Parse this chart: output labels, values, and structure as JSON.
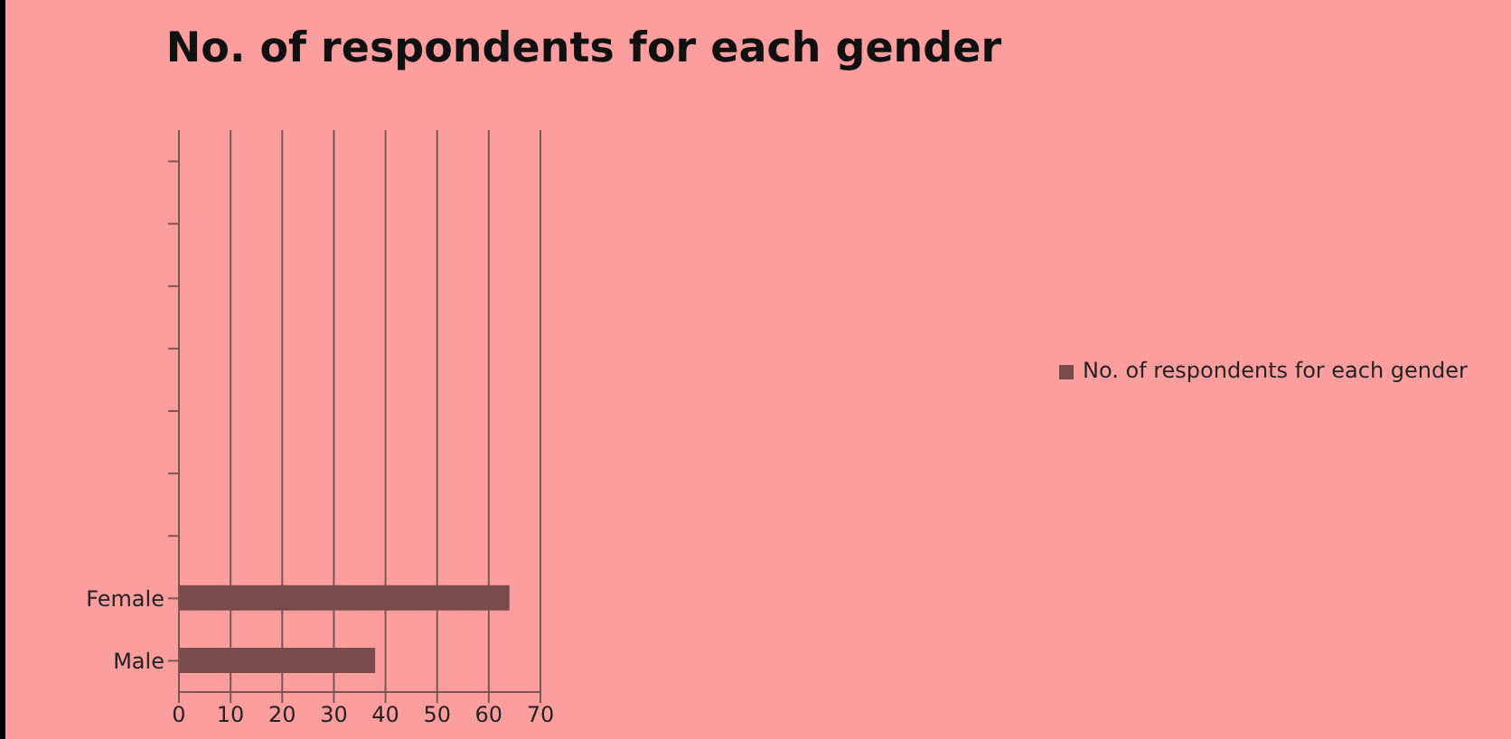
{
  "chart_data": {
    "type": "bar",
    "orientation": "horizontal",
    "title": "No. of respondents for each gender",
    "categories": [
      null,
      null,
      null,
      null,
      null,
      null,
      null,
      "Female",
      "Male"
    ],
    "series": [
      {
        "name": "No. of respondents for each gender",
        "color": "#7a4b4b",
        "values": [
          null,
          null,
          null,
          null,
          null,
          null,
          null,
          64,
          38
        ]
      }
    ],
    "xlim": [
      0,
      70
    ],
    "xticks": [
      0,
      10,
      20,
      30,
      40,
      50,
      60,
      70
    ],
    "grid": "x",
    "legend": "right"
  }
}
